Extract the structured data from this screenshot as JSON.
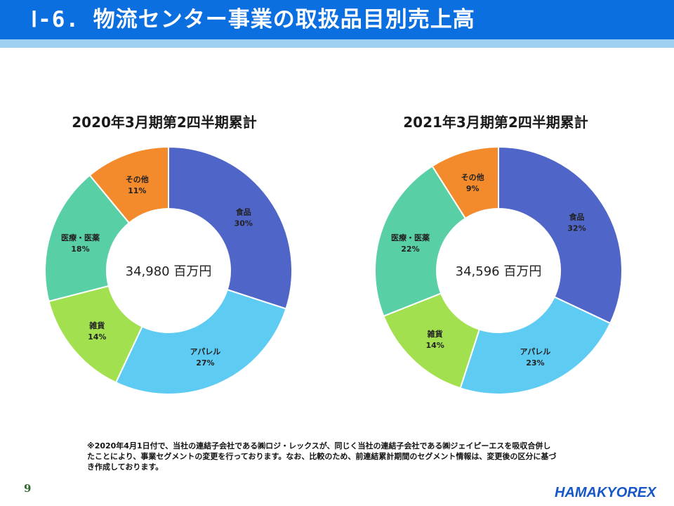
{
  "header": {
    "title": "Ⅰ-6. 物流センター事業の取扱品目別売上高"
  },
  "charts": {
    "left": {
      "title": "2020年3月期第2四半期累計",
      "total": "34,980 百万円"
    },
    "right": {
      "title": "2021年3月期第2四半期累計",
      "total": "34,596 百万円"
    }
  },
  "chart_data": [
    {
      "type": "pie",
      "title": "2020年3月期第2四半期累計",
      "center_text": "34,980 百万円",
      "categories": [
        "食品",
        "アパレル",
        "雑貨",
        "医療・医薬",
        "その他"
      ],
      "values": [
        30,
        27,
        14,
        18,
        11
      ],
      "value_labels": [
        "30%",
        "27%",
        "14%",
        "18%",
        "11%"
      ],
      "colors": [
        "#4f65c8",
        "#5ecbf3",
        "#a2e04f",
        "#59cfa6",
        "#f38a2b"
      ]
    },
    {
      "type": "pie",
      "title": "2021年3月期第2四半期累計",
      "center_text": "34,596 百万円",
      "categories": [
        "食品",
        "アパレル",
        "雑貨",
        "医療・医薬",
        "その他"
      ],
      "values": [
        32,
        23,
        14,
        22,
        9
      ],
      "value_labels": [
        "32%",
        "23%",
        "14%",
        "22%",
        "9%"
      ],
      "colors": [
        "#4f65c8",
        "#5ecbf3",
        "#a2e04f",
        "#59cfa6",
        "#f38a2b"
      ]
    }
  ],
  "footnote": "※2020年4月1日付で、当社の連結子会社である㈱ロジ・レックスが、同じく当社の連結子会社である㈱ジェイピーエスを吸収合併したことにより、事業セグメントの変更を行っております。なお、比較のため、前連結累計期間のセグメント情報は、変更後の区分に基づき作成しております。",
  "page_number": "9",
  "logo_text": "HAMAKYOREX"
}
